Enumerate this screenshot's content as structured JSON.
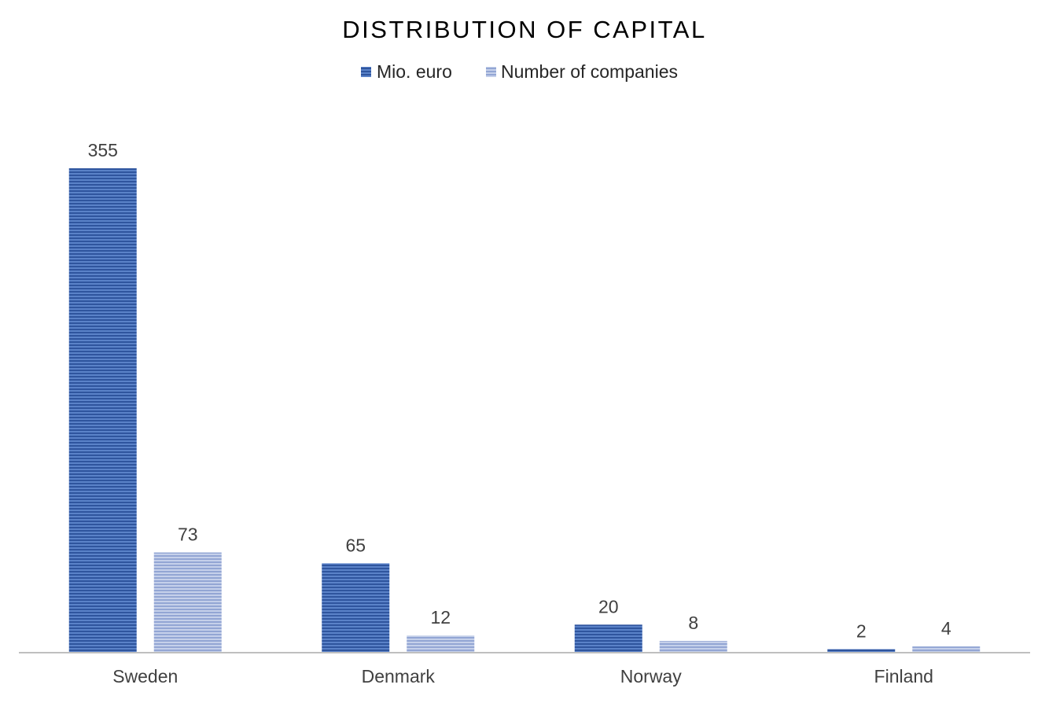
{
  "chart_data": {
    "type": "bar",
    "title": "DISTRIBUTION OF CAPITAL",
    "categories": [
      "Sweden",
      "Denmark",
      "Norway",
      "Finland"
    ],
    "series": [
      {
        "name": "Mio. euro",
        "values": [
          355,
          65,
          20,
          2
        ],
        "color": "#3a63ad",
        "pattern": "horizontal-stripes-dark"
      },
      {
        "name": "Number of companies",
        "values": [
          73,
          12,
          8,
          4
        ],
        "color": "#a4b4dc",
        "pattern": "horizontal-stripes-light"
      }
    ],
    "ylim": [
      0,
      355
    ],
    "data_labels": true,
    "legend_position": "top-center",
    "grid": false,
    "y_axis_visible": false,
    "axis_line_color": "#bfbfbf"
  }
}
